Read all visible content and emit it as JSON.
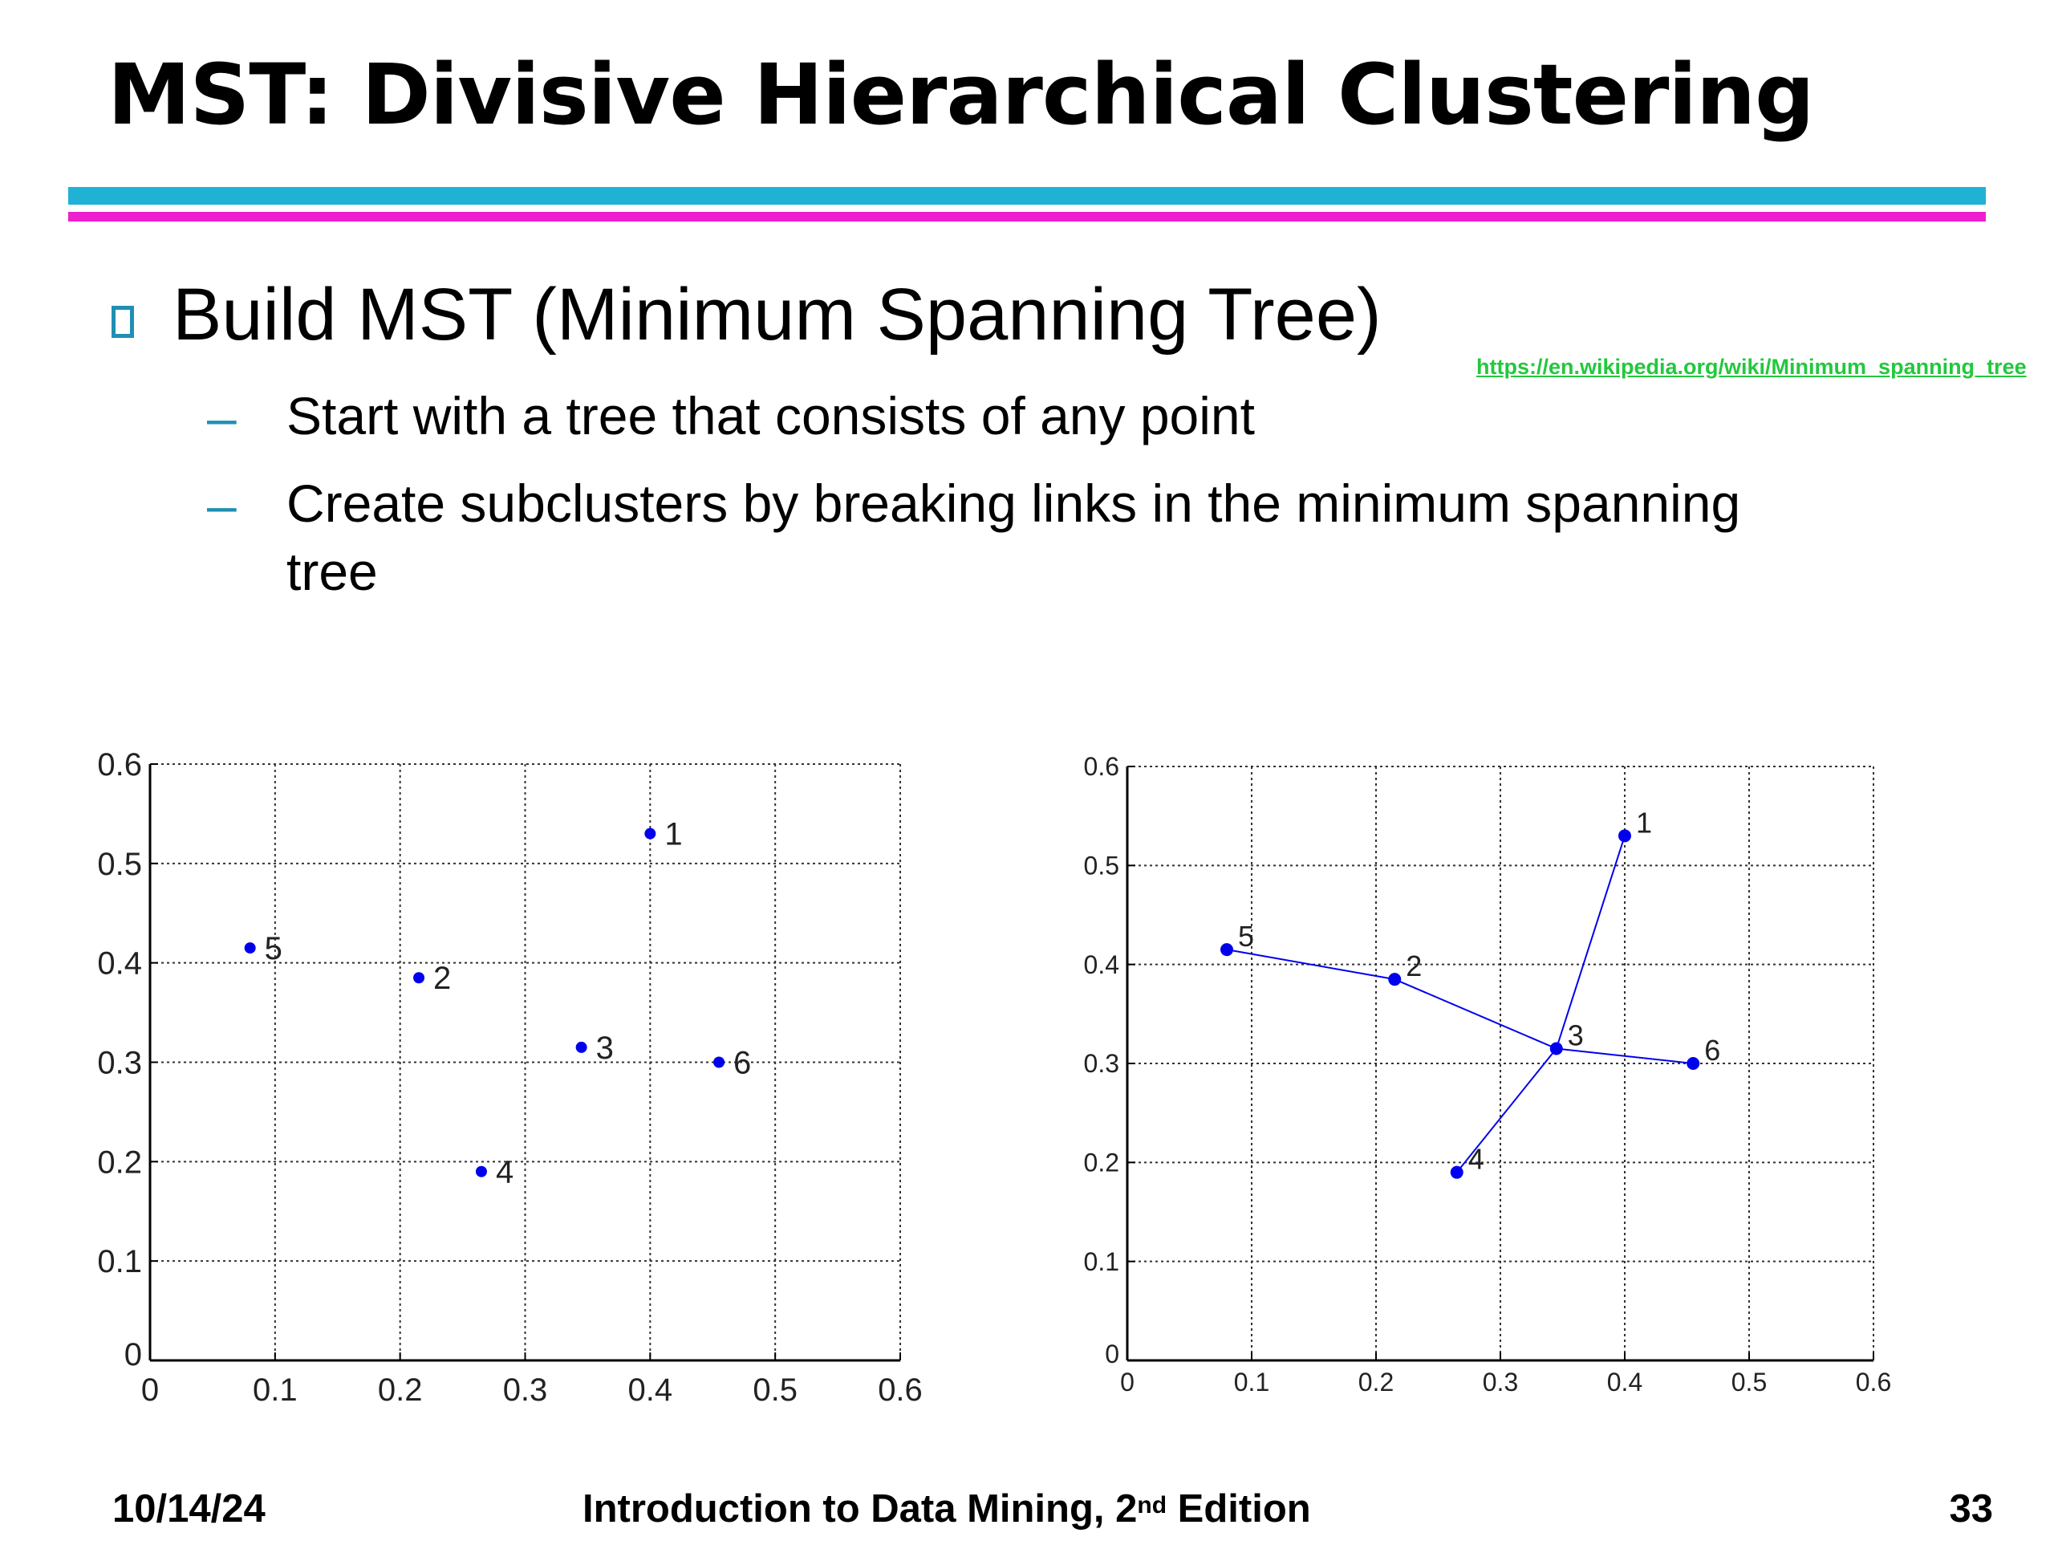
{
  "slide": {
    "title": "MST: Divisive Hierarchical Clustering",
    "bullet": "Build MST (Minimum Spanning Tree)",
    "link": "https://en.wikipedia.org/wiki/Minimum_spanning_tree",
    "subbullets": [
      "Start with a tree that consists of any point",
      "Create subclusters by breaking links in the minimum spanning",
      "tree"
    ],
    "dash": "–"
  },
  "footer": {
    "date": "10/14/24",
    "book_prefix": "Introduction to Data Mining, 2",
    "book_sup": "nd",
    "book_suffix": " Edition",
    "page": "33"
  },
  "colors": {
    "rule_top": "#1fb2d4",
    "rule_bottom": "#ee1fcf",
    "bullet": "#1f8fb4",
    "link": "#22c83c",
    "points": "#0000ee"
  },
  "chart_data": [
    {
      "type": "scatter",
      "xlim": [
        0,
        0.6
      ],
      "ylim": [
        0,
        0.6
      ],
      "xticks": [
        "0",
        "0.1",
        "0.2",
        "0.3",
        "0.4",
        "0.5",
        "0.6"
      ],
      "yticks": [
        "0",
        "0.1",
        "0.2",
        "0.3",
        "0.4",
        "0.5",
        "0.6"
      ],
      "grid": true,
      "points": [
        {
          "label": "1",
          "x": 0.4,
          "y": 0.53
        },
        {
          "label": "2",
          "x": 0.215,
          "y": 0.385
        },
        {
          "label": "3",
          "x": 0.345,
          "y": 0.315
        },
        {
          "label": "4",
          "x": 0.265,
          "y": 0.19
        },
        {
          "label": "5",
          "x": 0.08,
          "y": 0.415
        },
        {
          "label": "6",
          "x": 0.455,
          "y": 0.3
        }
      ],
      "edges": []
    },
    {
      "type": "scatter",
      "xlim": [
        0,
        0.6
      ],
      "ylim": [
        0,
        0.6
      ],
      "xticks": [
        "0",
        "0.1",
        "0.2",
        "0.3",
        "0.4",
        "0.5",
        "0.6"
      ],
      "yticks": [
        "0",
        "0.1",
        "0.2",
        "0.3",
        "0.4",
        "0.5",
        "0.6"
      ],
      "grid": true,
      "points": [
        {
          "label": "1",
          "x": 0.4,
          "y": 0.53
        },
        {
          "label": "2",
          "x": 0.215,
          "y": 0.385
        },
        {
          "label": "3",
          "x": 0.345,
          "y": 0.315
        },
        {
          "label": "4",
          "x": 0.265,
          "y": 0.19
        },
        {
          "label": "5",
          "x": 0.08,
          "y": 0.415
        },
        {
          "label": "6",
          "x": 0.455,
          "y": 0.3
        }
      ],
      "edges": [
        [
          "5",
          "2"
        ],
        [
          "2",
          "3"
        ],
        [
          "3",
          "1"
        ],
        [
          "3",
          "6"
        ],
        [
          "3",
          "4"
        ]
      ]
    }
  ]
}
